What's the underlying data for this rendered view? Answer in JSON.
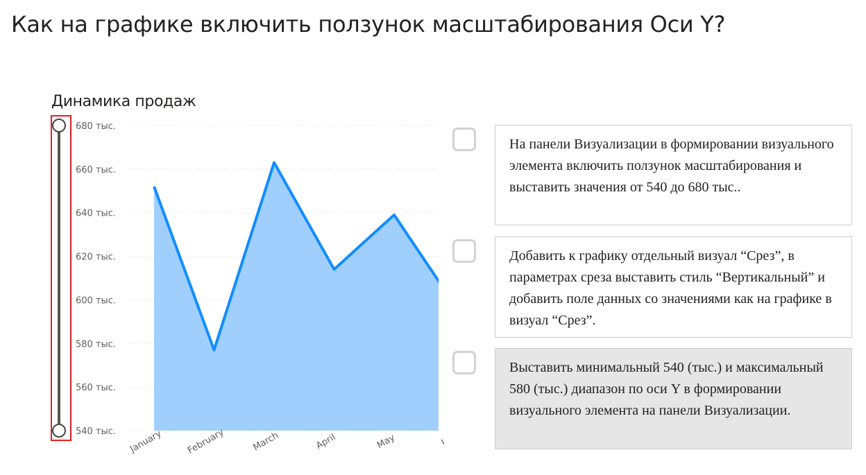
{
  "question": "Как на графике включить ползунок масштабирования Оси Y?",
  "options": [
    {
      "text": "На панели Визуализации в формировании визуального элемента включить ползунок масштабирования и выставить значения от 540 до 680 тыс..",
      "selected": false
    },
    {
      "text": "Добавить к графику отдельный визуал “Срез”, в параметрах среза выставить стиль “Вертикальный” и добавить поле данных со значениями как на графике в визуал “Срез”.",
      "selected": false
    },
    {
      "text": "Выставить минимальный 540 (тыс.) и максимальный 580 (тыс.) диапазон по оси Y в формировании визуального элемента на панели Визуализации.",
      "selected": true
    }
  ],
  "chart_data": {
    "type": "area",
    "title": "Динамика продаж",
    "categories": [
      "January",
      "February",
      "March",
      "April",
      "May",
      "June"
    ],
    "visible_category_labels": [
      "January",
      "February",
      "March",
      "April",
      "May",
      "Ju"
    ],
    "values": [
      652,
      577,
      663,
      614,
      639,
      598
    ],
    "ylim": [
      540,
      680
    ],
    "yticks": [
      540,
      560,
      580,
      600,
      620,
      640,
      660,
      680
    ],
    "ytick_labels": [
      "540 тыс.",
      "560 тыс.",
      "580 тыс.",
      "600 тыс.",
      "620 тыс.",
      "640 тыс.",
      "660 тыс.",
      "680 тыс."
    ],
    "line_color": "#118dff",
    "fill_color": "#a0cffd",
    "grid": true,
    "slider": {
      "min": 540,
      "max": 680,
      "highlight_color": "#e81e1e"
    }
  }
}
